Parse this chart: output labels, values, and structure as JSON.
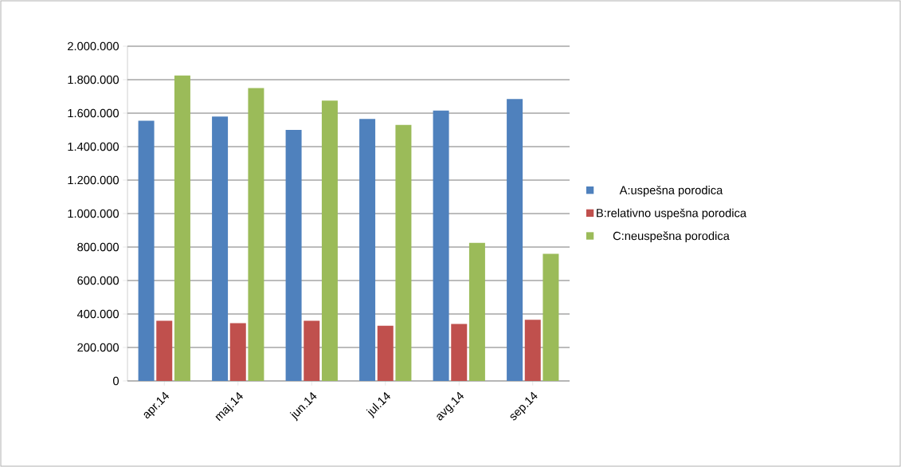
{
  "chart_data": {
    "type": "bar",
    "categories": [
      "apr.14",
      "maj.14",
      "jun.14",
      "jul.14",
      "avg.14",
      "sep.14"
    ],
    "series": [
      {
        "name": "A:uspešna porodica",
        "color": "#4f81bd",
        "values": [
          1555000,
          1580000,
          1500000,
          1565000,
          1615000,
          1685000
        ]
      },
      {
        "name": "B:relativno uspešna porodica",
        "color": "#c0504d",
        "values": [
          360000,
          345000,
          360000,
          330000,
          340000,
          365000
        ]
      },
      {
        "name": "C:neuspešna porodica",
        "color": "#9bbb59",
        "values": [
          1825000,
          1750000,
          1675000,
          1530000,
          825000,
          760000
        ]
      }
    ],
    "ylim": [
      0,
      2000000
    ],
    "yticks": [
      {
        "value": 0,
        "label": "0"
      },
      {
        "value": 200000,
        "label": "200.000"
      },
      {
        "value": 400000,
        "label": "400.000"
      },
      {
        "value": 600000,
        "label": "600.000"
      },
      {
        "value": 800000,
        "label": "800.000"
      },
      {
        "value": 1000000,
        "label": "1.000.000"
      },
      {
        "value": 1200000,
        "label": "1.200.000"
      },
      {
        "value": 1400000,
        "label": "1.400.000"
      },
      {
        "value": 1600000,
        "label": "1.600.000"
      },
      {
        "value": 1800000,
        "label": "1.800.000"
      },
      {
        "value": 2000000,
        "label": "2.000.000"
      }
    ],
    "grid": "y",
    "legend": "right"
  }
}
